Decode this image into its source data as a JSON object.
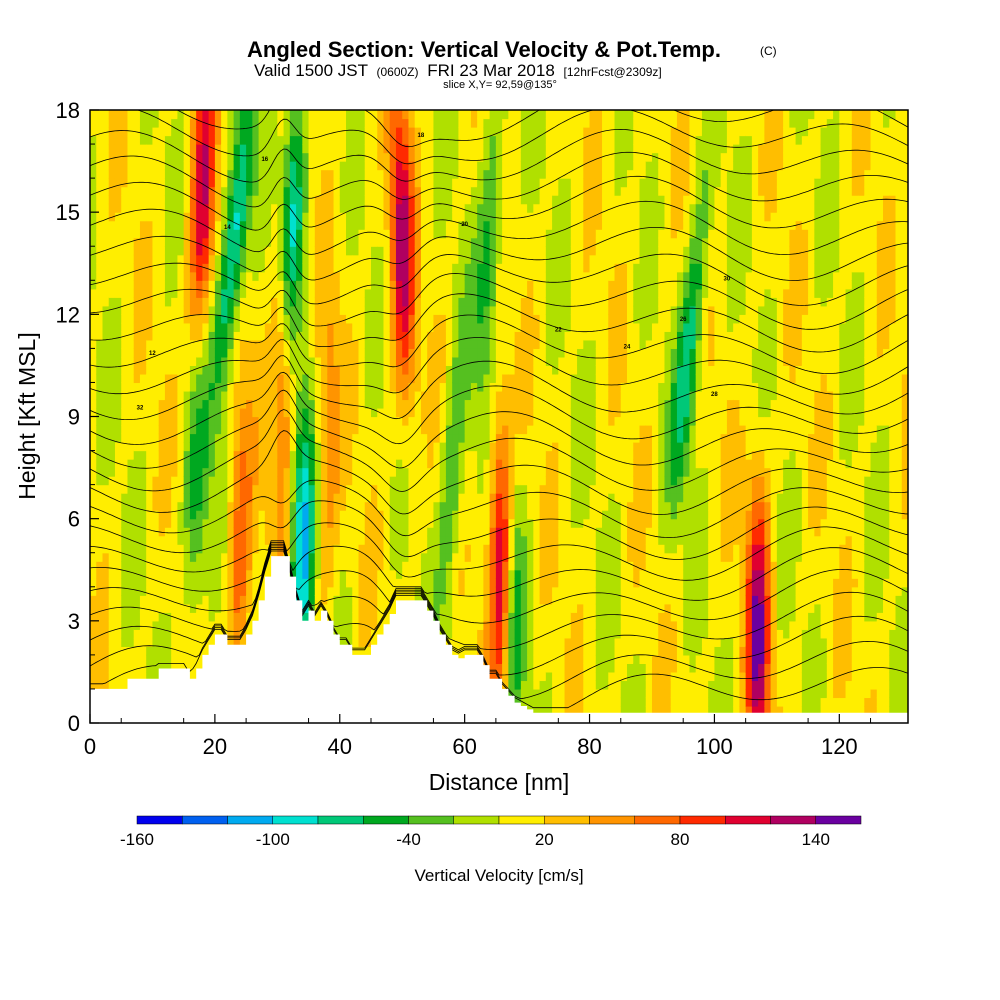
{
  "chart_data": {
    "type": "heatmap",
    "title": "Angled Section: Vertical Velocity & Pot.Temp.",
    "title_units": "(C)",
    "subtitle": {
      "valid": "Valid 1500 JST",
      "zulu": "(0600Z)",
      "date": "FRI 23 Mar 2018",
      "forecast": "[12hrFcst@2309z]"
    },
    "slice_label": "slice X,Y= 92,59@135°",
    "xlabel": "Distance [nm]",
    "ylabel": "Height [Kft MSL]",
    "xlim": [
      0,
      131
    ],
    "ylim": [
      0,
      18
    ],
    "x_ticks": [
      "0",
      "20",
      "40",
      "60",
      "80",
      "100",
      "120"
    ],
    "x_tick_values": [
      0,
      20,
      40,
      60,
      80,
      100,
      120
    ],
    "y_ticks": [
      "0",
      "3",
      "6",
      "9",
      "12",
      "15",
      "18"
    ],
    "y_tick_values": [
      0,
      3,
      6,
      9,
      12,
      15,
      18
    ],
    "colorbar": {
      "label": "Vertical Velocity [cm/s]",
      "min": -160,
      "max": 160,
      "step": 20,
      "tick_labels": [
        "-160",
        "-100",
        "-40",
        "20",
        "80",
        "140"
      ],
      "tick_values": [
        -160,
        -100,
        -40,
        20,
        80,
        140
      ],
      "colors": [
        "#0000ee",
        "#0060f0",
        "#00aaf0",
        "#00e0d0",
        "#00c878",
        "#00a820",
        "#55c020",
        "#b0e000",
        "#ffee00",
        "#ffbe00",
        "#ff9400",
        "#ff6800",
        "#ff2a00",
        "#e00030",
        "#b00060",
        "#6a00a0"
      ]
    },
    "vertical_velocity_features": [
      {
        "x": 18,
        "z": 15,
        "w": 110,
        "tilt": 0.15
      },
      {
        "x": 23,
        "z": 14,
        "w": -110,
        "tilt": 0.6
      },
      {
        "x": 31,
        "z": 11,
        "w": 120,
        "tilt": 0.1
      },
      {
        "x": 32,
        "z": 14,
        "w": -140,
        "tilt": 0.25
      },
      {
        "x": 34,
        "z": 5,
        "w": -110,
        "tilt": 0.1
      },
      {
        "x": 50,
        "z": 14,
        "w": 120,
        "tilt": -0.1
      },
      {
        "x": 64,
        "z": 14,
        "w": -60,
        "tilt": 0.3
      },
      {
        "x": 66,
        "z": 4.5,
        "w": 140,
        "tilt": 0
      },
      {
        "x": 67.5,
        "z": 3,
        "w": -80,
        "tilt": 0
      },
      {
        "x": 96,
        "z": 11,
        "w": -80,
        "tilt": 0.5
      },
      {
        "x": 107,
        "z": 2.5,
        "w": 130,
        "tilt": 0
      },
      {
        "x": 17,
        "z": 7,
        "w": -60,
        "tilt": 0.2
      },
      {
        "x": 24,
        "z": 5,
        "w": 70,
        "tilt": 0.1
      },
      {
        "x": 58,
        "z": 7,
        "w": -50,
        "tilt": 0.3
      },
      {
        "x": 38,
        "z": 8,
        "w": 50,
        "tilt": 0.1
      }
    ],
    "terrain": {
      "x": [
        0,
        5,
        6,
        10,
        11,
        15,
        16,
        17,
        18,
        19,
        20,
        21,
        22,
        24,
        25,
        26,
        27,
        28,
        29,
        31,
        32,
        33,
        34,
        35,
        36,
        37,
        38,
        39,
        40,
        41,
        42,
        44,
        45,
        46,
        47,
        48,
        49,
        50,
        51,
        53,
        54,
        55,
        56,
        57,
        58,
        59,
        60,
        61,
        62,
        63,
        64,
        65,
        66,
        67,
        68,
        69,
        70,
        71,
        72,
        131
      ],
      "z": [
        1.0,
        1.0,
        1.3,
        1.3,
        1.6,
        1.6,
        1.3,
        1.6,
        2.0,
        2.3,
        2.6,
        2.6,
        2.3,
        2.3,
        2.6,
        3.0,
        3.6,
        4.3,
        4.9,
        4.9,
        4.3,
        3.6,
        3.0,
        3.3,
        3.0,
        3.3,
        3.0,
        2.6,
        2.3,
        2.3,
        2.0,
        2.0,
        2.3,
        2.6,
        2.9,
        3.2,
        3.6,
        3.6,
        3.6,
        3.6,
        3.3,
        3.0,
        2.6,
        2.3,
        2.0,
        1.9,
        2.0,
        2.0,
        2.0,
        1.7,
        1.3,
        1.3,
        1.0,
        0.8,
        0.6,
        0.5,
        0.4,
        0.3,
        0.3,
        0.3
      ]
    },
    "theta_contours": {
      "levels": [
        2,
        4,
        6,
        8,
        10,
        12,
        14,
        16,
        18,
        20,
        22,
        24,
        26,
        28,
        30,
        32,
        34,
        36,
        38,
        40,
        42,
        44,
        46,
        48,
        50,
        52
      ],
      "labeled": [
        "12",
        "14",
        "16",
        "18",
        "20",
        "22",
        "24",
        "26",
        "28",
        "30",
        "32"
      ]
    }
  }
}
